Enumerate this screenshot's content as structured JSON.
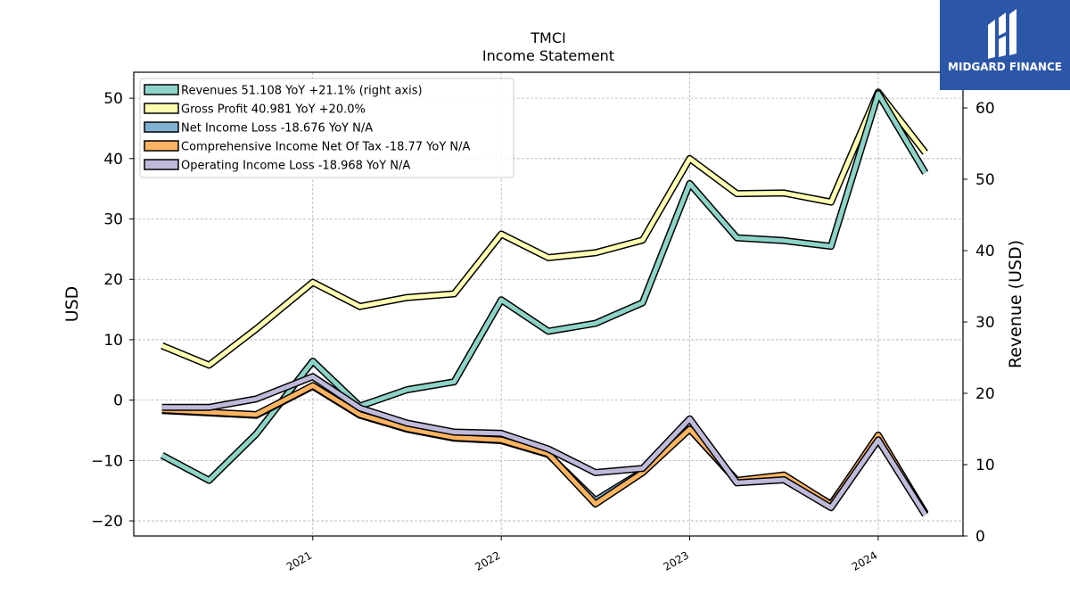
{
  "chart_data": {
    "type": "line",
    "title": "TMCI",
    "subtitle": "Income Statement",
    "ylabel": "USD",
    "y2label": "Revenue (USD)",
    "ylim": [
      -22.5,
      54.3
    ],
    "y2lim": [
      0,
      65
    ],
    "yticks": [
      -20,
      -10,
      0,
      10,
      20,
      30,
      40,
      50
    ],
    "y2ticks": [
      0,
      10,
      20,
      30,
      40,
      50,
      60
    ],
    "xlim": [
      2020.05,
      2024.45
    ],
    "xticks": [
      {
        "value": 2021,
        "label": "2021"
      },
      {
        "value": 2022,
        "label": "2022"
      },
      {
        "value": 2023,
        "label": "2023"
      },
      {
        "value": 2024,
        "label": "2024"
      }
    ],
    "grid": true,
    "legend_position": "top-left",
    "x": [
      2020.2,
      2020.45,
      2020.7,
      2021.0,
      2021.25,
      2021.5,
      2021.75,
      2022.0,
      2022.25,
      2022.5,
      2022.75,
      2023.0,
      2023.25,
      2023.5,
      2023.75,
      2024.0,
      2024.25
    ],
    "series": [
      {
        "name": "Revenues  51.108 YoY +21.1% (right axis)",
        "axis": "right",
        "color": "#8dd3c7",
        "values": [
          11.3,
          7.8,
          14.3,
          24.5,
          18.2,
          20.5,
          21.6,
          33.1,
          28.7,
          29.8,
          32.7,
          49.4,
          41.8,
          41.4,
          40.6,
          62.0,
          50.9
        ]
      },
      {
        "name": "Gross Profit  40.981 YoY +20.0%",
        "axis": "left",
        "color": "#ffffb3",
        "values": [
          9.0,
          5.8,
          11.8,
          19.5,
          15.5,
          17.0,
          17.6,
          27.5,
          23.6,
          24.4,
          26.5,
          40.0,
          34.2,
          34.3,
          32.8,
          51.0,
          41.0
        ]
      },
      {
        "name": "Net Income Loss  -18.676 YoY N/A",
        "axis": "left",
        "color": "#80b1d3",
        "values": [
          -1.7,
          -2.1,
          -2.5,
          2.3,
          -2.5,
          -4.8,
          -6.3,
          -6.7,
          -9.0,
          -16.6,
          -11.8,
          -4.8,
          -13.4,
          -12.8,
          -17.2,
          -6.1,
          -18.7
        ]
      },
      {
        "name": "Comprehensive Income Net Of Tax  -18.77 YoY N/A",
        "axis": "left",
        "color": "#fdb462",
        "values": [
          -1.6,
          -2.0,
          -2.4,
          2.4,
          -2.4,
          -4.7,
          -6.2,
          -6.6,
          -8.9,
          -17.2,
          -12.0,
          -4.8,
          -13.3,
          -12.4,
          -17.3,
          -5.8,
          -18.8
        ]
      },
      {
        "name": "Operating Income Loss  -18.968 YoY N/A",
        "axis": "left",
        "color": "#bebada",
        "values": [
          -1.2,
          -1.2,
          0.2,
          3.9,
          -1.3,
          -3.8,
          -5.3,
          -5.5,
          -8.1,
          -12.0,
          -11.3,
          -3.1,
          -13.7,
          -13.2,
          -17.8,
          -6.6,
          -19.0
        ]
      }
    ]
  },
  "brand": {
    "name": "MIDGARD FINANCE",
    "color": "#2c57a8"
  }
}
